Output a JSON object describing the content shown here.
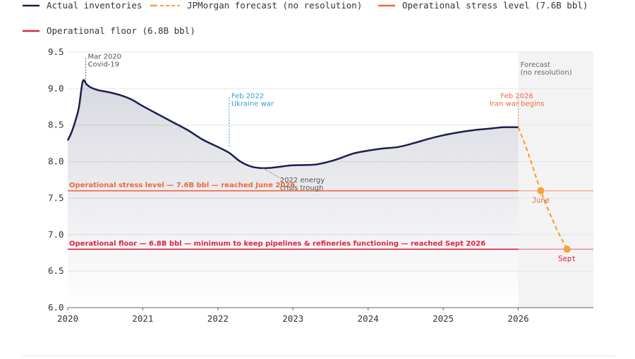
{
  "legend": [
    {
      "label": "Actual inventories",
      "color": "#1b1f4b",
      "style": "solid"
    },
    {
      "label": "JPMorgan forecast (no resolution)",
      "color": "#f5a23a",
      "style": "dashed"
    },
    {
      "label": "Operational stress level (7.6B bbl)",
      "color": "#ec6a3d",
      "style": "solid"
    },
    {
      "label": "Operational floor (6.8B bbl)",
      "color": "#e0243d",
      "style": "solid"
    }
  ],
  "chart_data": {
    "type": "line",
    "x_unit": "year",
    "xlim": [
      2020,
      2027
    ],
    "ylim": [
      6.0,
      9.5
    ],
    "xticks": [
      "2020",
      "2021",
      "2022",
      "2023",
      "2024",
      "2025",
      "2026"
    ],
    "yticks": [
      "6.0",
      "6.5",
      "7.0",
      "7.5",
      "8.0",
      "8.5",
      "9.0",
      "9.5"
    ],
    "grid": "horizontal",
    "series": [
      {
        "name": "Actual inventories",
        "color": "#1b1f4b",
        "x": [
          2020.0,
          2020.05,
          2020.1,
          2020.15,
          2020.2,
          2020.25,
          2020.3,
          2020.4,
          2020.55,
          2020.7,
          2020.85,
          2021.0,
          2021.2,
          2021.4,
          2021.6,
          2021.8,
          2022.0,
          2022.15,
          2022.3,
          2022.45,
          2022.6,
          2022.75,
          2023.0,
          2023.3,
          2023.55,
          2023.8,
          2024.0,
          2024.2,
          2024.4,
          2024.6,
          2024.8,
          2025.0,
          2025.2,
          2025.4,
          2025.6,
          2025.8,
          2026.0
        ],
        "y": [
          8.29,
          8.4,
          8.55,
          8.75,
          9.1,
          9.06,
          9.02,
          8.98,
          8.95,
          8.91,
          8.85,
          8.76,
          8.65,
          8.54,
          8.43,
          8.3,
          8.2,
          8.12,
          8.0,
          7.93,
          7.91,
          7.92,
          7.95,
          7.96,
          8.02,
          8.11,
          8.15,
          8.18,
          8.2,
          8.25,
          8.31,
          8.36,
          8.4,
          8.43,
          8.45,
          8.47,
          8.47
        ]
      },
      {
        "name": "JPMorgan forecast (no resolution)",
        "color": "#f5a23a",
        "style": "dashed",
        "x": [
          2026.0,
          2026.12,
          2026.3,
          2026.5,
          2026.65
        ],
        "y": [
          8.47,
          8.15,
          7.6,
          7.1,
          6.8
        ]
      }
    ],
    "reference_lines": [
      {
        "y": 7.6,
        "label": "Operational stress level — 7.6B bbl — reached June 2026",
        "color": "#ec6a3d"
      },
      {
        "y": 6.8,
        "label": "Operational floor — 6.8B bbl — minimum to keep pipelines & refineries functioning — reached Sept 2026",
        "color": "#e0243d"
      }
    ],
    "forecast_region": {
      "x_start": 2026.0,
      "label_1": "Forecast",
      "label_2": "(no resolution)"
    },
    "annotations": [
      {
        "x": 2020.24,
        "y_from": 9.1,
        "y_to": 9.42,
        "line1": "Mar 2020",
        "line2": "Covid-19",
        "color": "#555555"
      },
      {
        "x": 2022.15,
        "y_from": 8.2,
        "y_to": 8.88,
        "line1": "Feb 2022",
        "line2": "Ukraine war",
        "color": "#3a9ad9"
      },
      {
        "x": 2026.0,
        "y_from": 8.47,
        "y_to": 8.88,
        "line1": "Feb 2026",
        "line2": "Iran war begins",
        "color": "#ec6a3d"
      }
    ],
    "trough_note": {
      "x": 2022.6,
      "y": 7.91,
      "line1": "2022 energy",
      "line2": "crisis trough",
      "color": "#555555"
    },
    "points": [
      {
        "x": 2026.3,
        "y": 7.6,
        "label": "June",
        "color": "#f5a23a",
        "label_color": "#ec6a3d"
      },
      {
        "x": 2026.65,
        "y": 6.8,
        "label": "Sept",
        "color": "#f5a23a",
        "label_color": "#e0243d"
      }
    ]
  }
}
